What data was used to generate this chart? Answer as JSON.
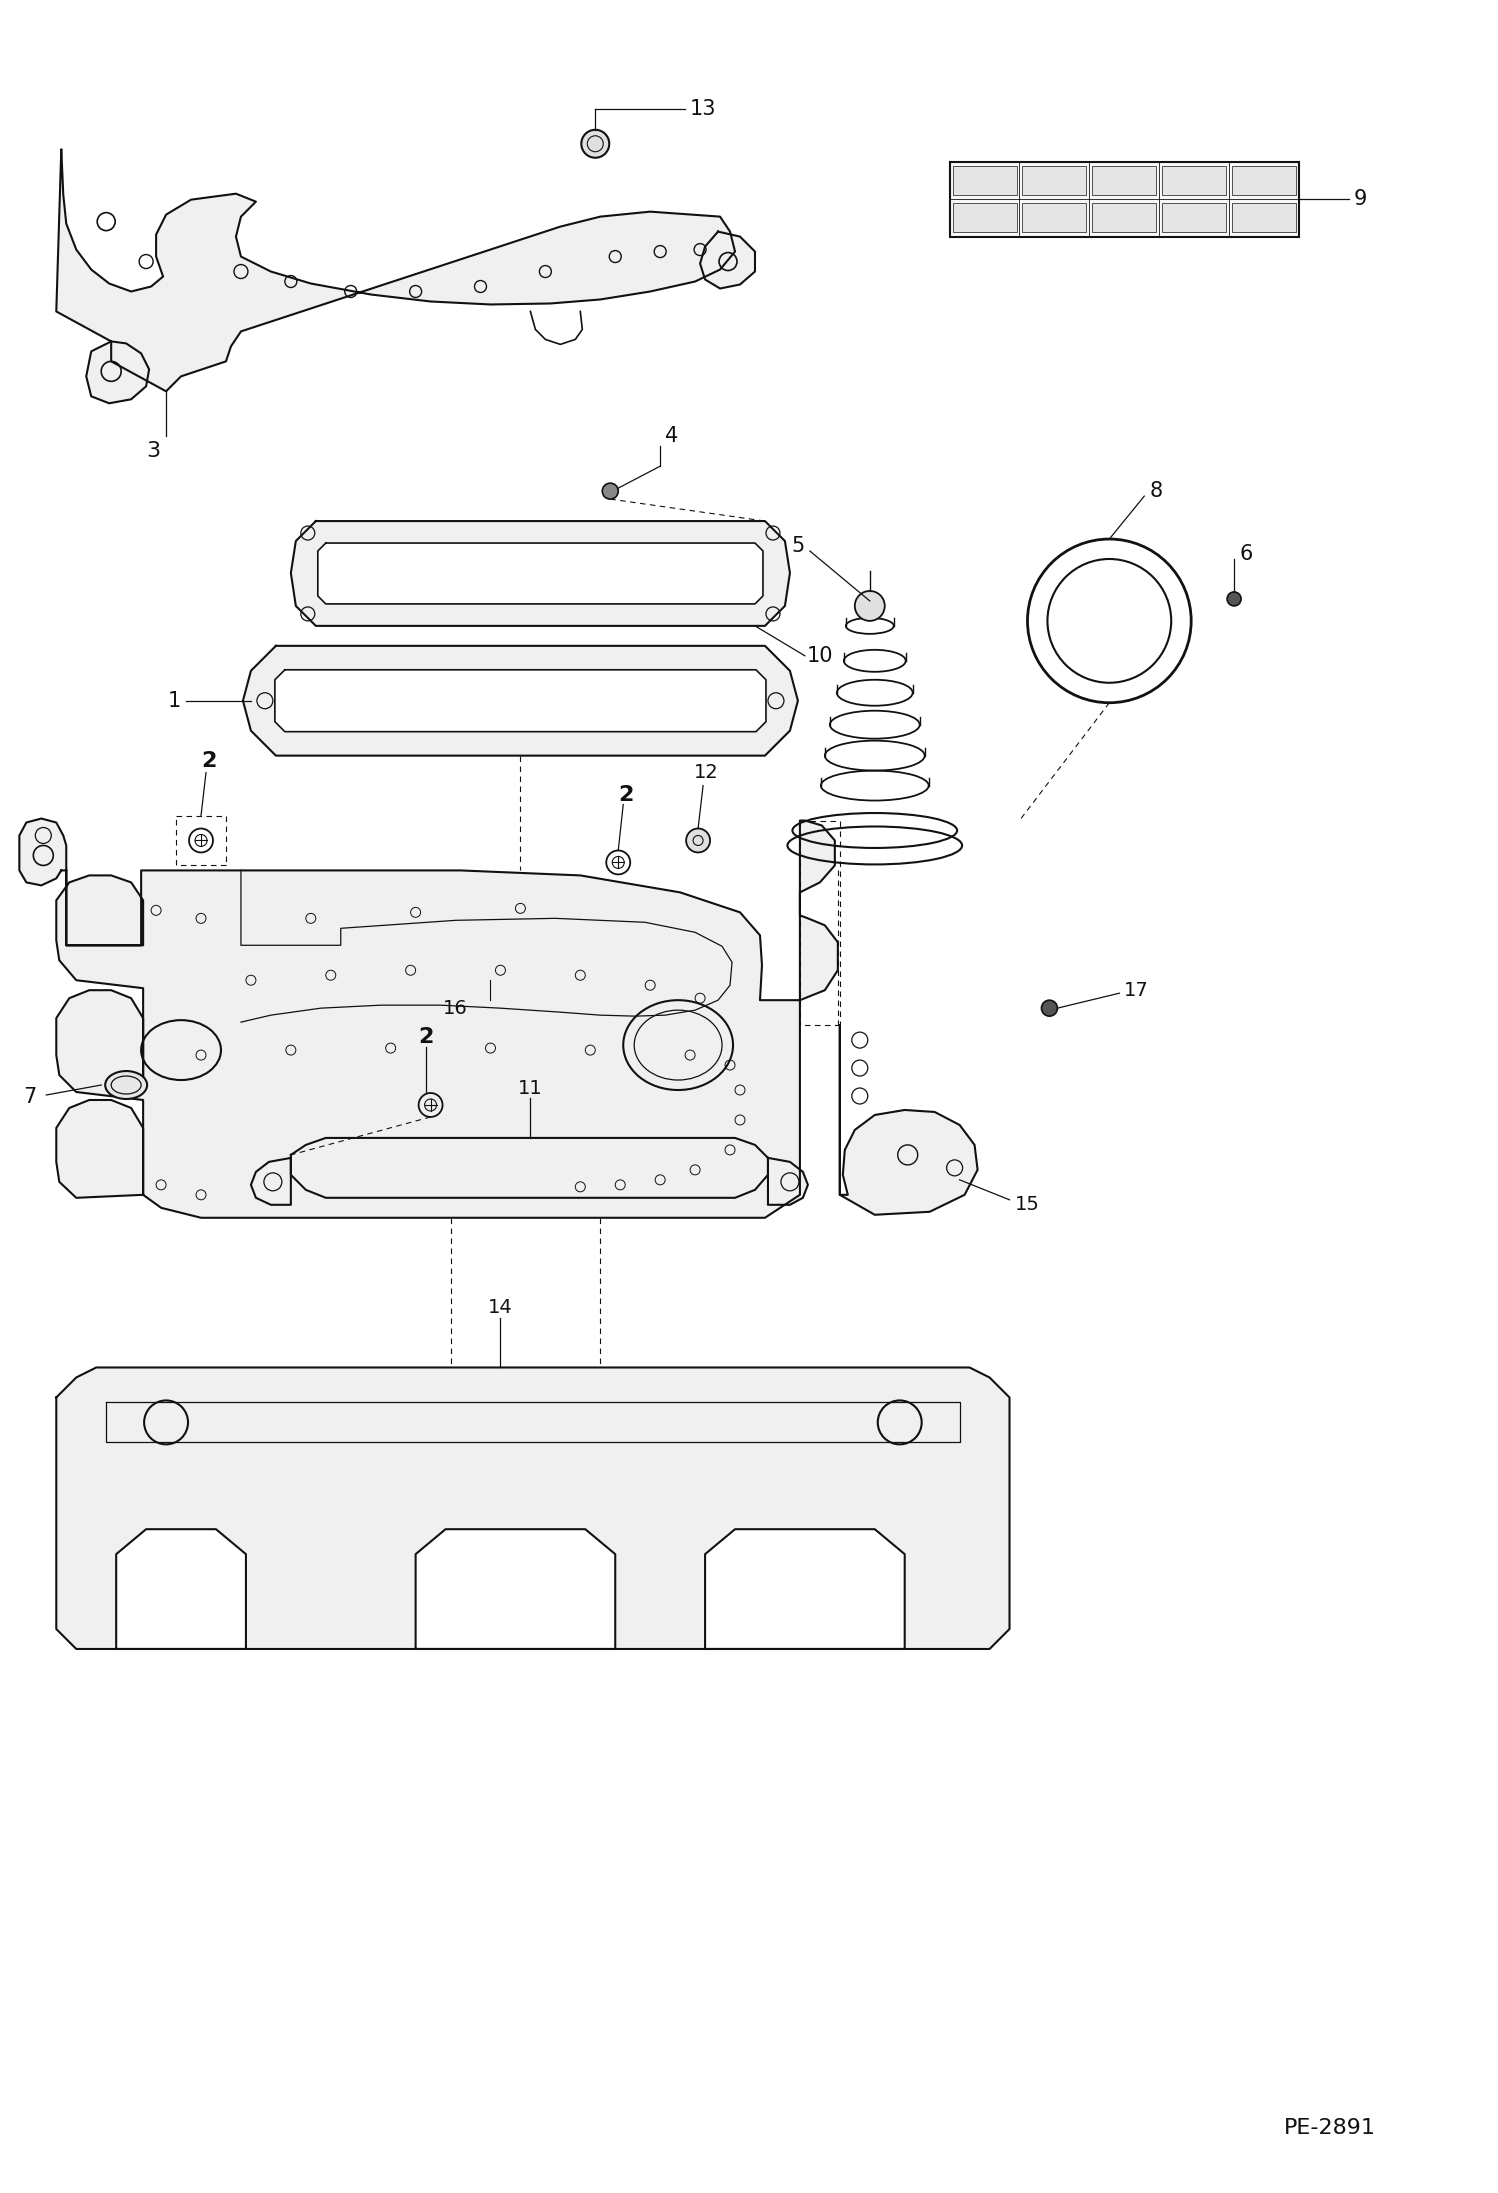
{
  "bg_color": "#ffffff",
  "line_color": "#111111",
  "page_id": "PE-2891",
  "figsize": [
    14.98,
    21.93
  ],
  "dpi": 100,
  "xlim": [
    0,
    1498
  ],
  "ylim": [
    0,
    2193
  ]
}
